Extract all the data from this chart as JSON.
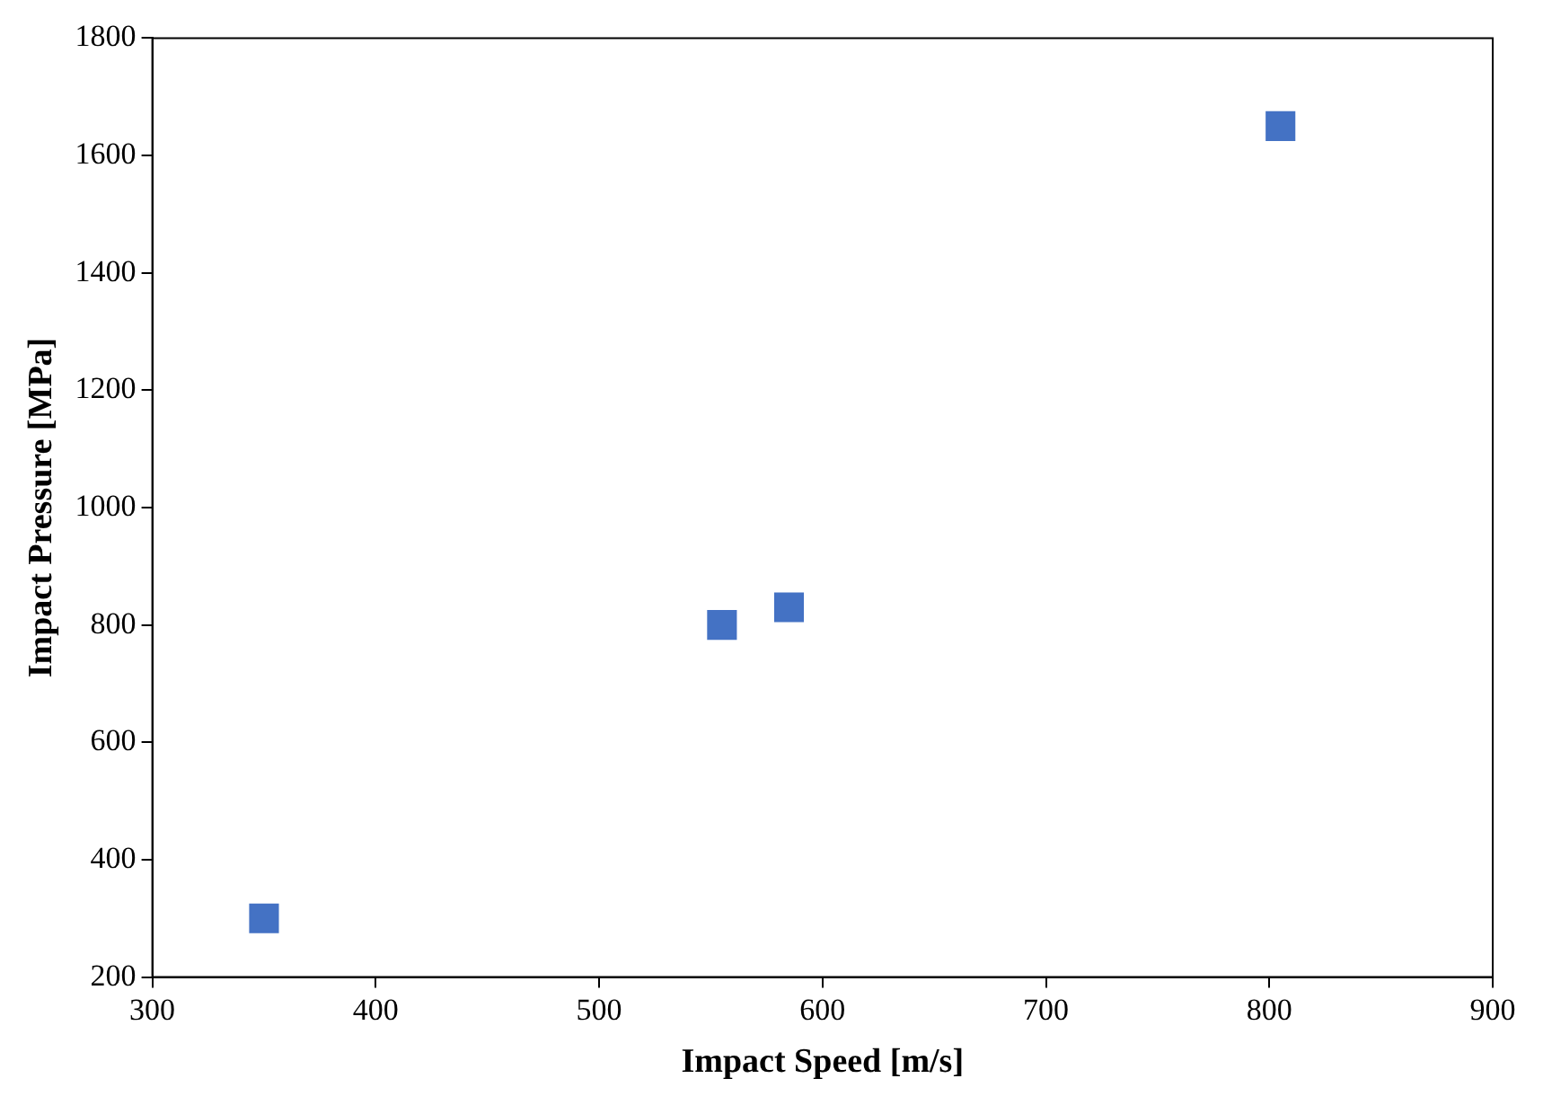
{
  "chart_data": {
    "type": "scatter",
    "xlabel": "Impact Speed [m/s]",
    "ylabel": "Impact Pressure [MPa]",
    "x": [
      350,
      555,
      585,
      805
    ],
    "series": [
      {
        "color": "#4472c4",
        "values": [
          300,
          800,
          830,
          1650
        ]
      }
    ],
    "xlim": [
      300,
      900
    ],
    "xticks": [
      300,
      400,
      500,
      600,
      700,
      800,
      900
    ],
    "ylim": [
      200,
      1800
    ],
    "yticks": [
      200,
      400,
      600,
      800,
      1000,
      1200,
      1400,
      1600,
      1800
    ],
    "grid": false,
    "legend": false,
    "marker": "square"
  }
}
